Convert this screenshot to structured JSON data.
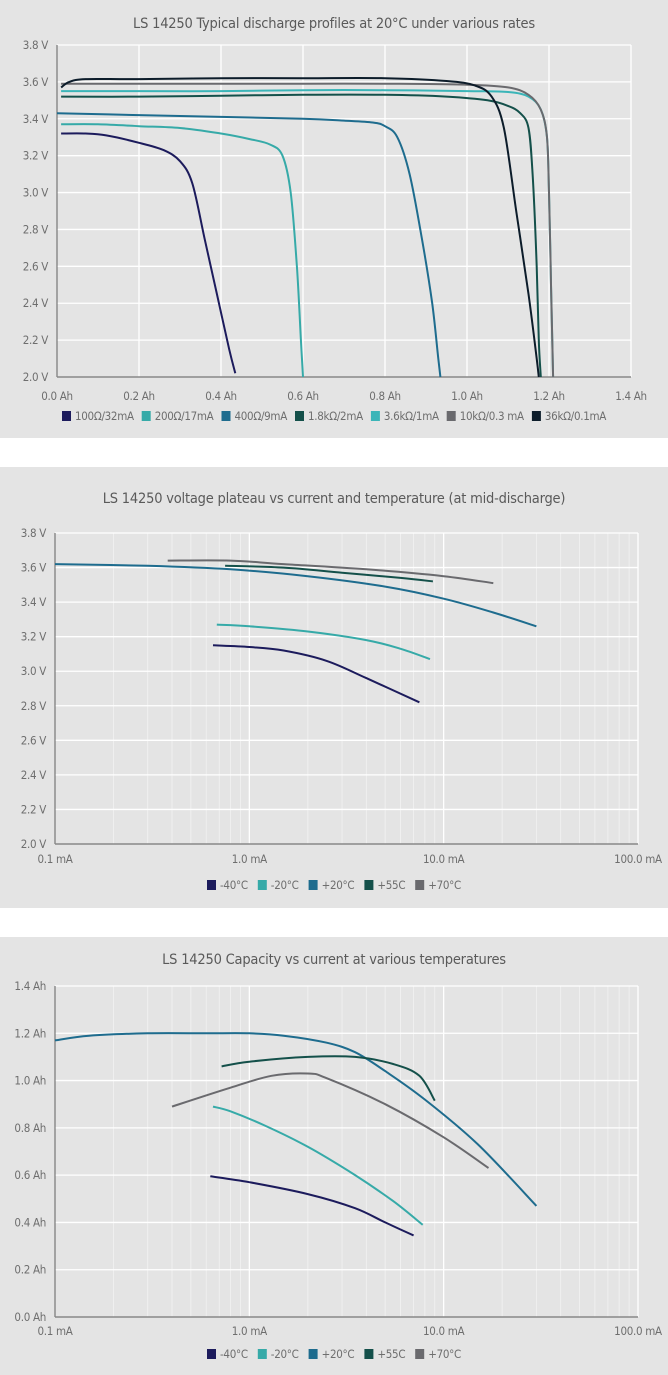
{
  "chart_data": [
    {
      "type": "line",
      "title": "LS 14250 Typical discharge profiles at 20°C under various rates",
      "xlabel": "",
      "ylabel": "",
      "x_scale": "linear",
      "xlim": [
        0,
        1.4
      ],
      "ylim": [
        2.0,
        3.8
      ],
      "x_ticks": [
        0,
        0.2,
        0.4,
        0.6,
        0.8,
        1.0,
        1.2,
        1.4
      ],
      "x_tick_labels": [
        "0.0 Ah",
        "0.2 Ah",
        "0.4 Ah",
        "0.6 Ah",
        "0.8 Ah",
        "1.0 Ah",
        "1.2 Ah",
        "1.4 Ah"
      ],
      "y_ticks": [
        2.0,
        2.2,
        2.4,
        2.6,
        2.8,
        3.0,
        3.2,
        3.4,
        3.6,
        3.8
      ],
      "y_tick_labels": [
        "2.0 V",
        "2.2 V",
        "2.4 V",
        "2.6 V",
        "2.8 V",
        "3.0 V",
        "3.2 V",
        "3.4 V",
        "3.6 V",
        "3.8 V"
      ],
      "grid": true,
      "legend_position": "bottom",
      "series": [
        {
          "name": "100Ω/32mA",
          "color": "#1c1b5c",
          "points": [
            [
              0.01,
              3.32
            ],
            [
              0.07,
              3.32
            ],
            [
              0.12,
              3.31
            ],
            [
              0.2,
              3.27
            ],
            [
              0.26,
              3.23
            ],
            [
              0.3,
              3.17
            ],
            [
              0.33,
              3.05
            ],
            [
              0.36,
              2.75
            ],
            [
              0.39,
              2.45
            ],
            [
              0.42,
              2.15
            ],
            [
              0.435,
              2.02
            ]
          ]
        },
        {
          "name": "200Ω/17mA",
          "color": "#36aaa8",
          "points": [
            [
              0.01,
              3.37
            ],
            [
              0.1,
              3.37
            ],
            [
              0.2,
              3.36
            ],
            [
              0.3,
              3.35
            ],
            [
              0.4,
              3.32
            ],
            [
              0.47,
              3.29
            ],
            [
              0.52,
              3.26
            ],
            [
              0.55,
              3.2
            ],
            [
              0.57,
              3.0
            ],
            [
              0.585,
              2.6
            ],
            [
              0.595,
              2.2
            ],
            [
              0.6,
              2.0
            ]
          ]
        },
        {
          "name": "400Ω/9mA",
          "color": "#1e6c8e",
          "points": [
            [
              0.0,
              3.43
            ],
            [
              0.2,
              3.42
            ],
            [
              0.4,
              3.41
            ],
            [
              0.6,
              3.4
            ],
            [
              0.7,
              3.39
            ],
            [
              0.77,
              3.38
            ],
            [
              0.8,
              3.36
            ],
            [
              0.83,
              3.3
            ],
            [
              0.86,
              3.1
            ],
            [
              0.89,
              2.75
            ],
            [
              0.915,
              2.4
            ],
            [
              0.93,
              2.1
            ],
            [
              0.935,
              2.0
            ]
          ]
        },
        {
          "name": "1.8kΩ/2mA",
          "color": "#14504a",
          "points": [
            [
              0.01,
              3.52
            ],
            [
              0.2,
              3.52
            ],
            [
              0.4,
              3.525
            ],
            [
              0.6,
              3.53
            ],
            [
              0.8,
              3.53
            ],
            [
              0.95,
              3.52
            ],
            [
              1.05,
              3.5
            ],
            [
              1.1,
              3.47
            ],
            [
              1.13,
              3.43
            ],
            [
              1.15,
              3.35
            ],
            [
              1.16,
              3.1
            ],
            [
              1.17,
              2.6
            ],
            [
              1.175,
              2.2
            ],
            [
              1.18,
              2.0
            ]
          ]
        },
        {
          "name": "3.6kΩ/1mA",
          "color": "#3bb5b8",
          "points": [
            [
              0.01,
              3.55
            ],
            [
              0.2,
              3.55
            ],
            [
              0.4,
              3.55
            ],
            [
              0.6,
              3.555
            ],
            [
              0.8,
              3.555
            ],
            [
              1.0,
              3.55
            ],
            [
              1.1,
              3.545
            ],
            [
              1.15,
              3.52
            ],
            [
              1.18,
              3.45
            ],
            [
              1.195,
              3.3
            ],
            [
              1.2,
              3.0
            ],
            [
              1.205,
              2.5
            ],
            [
              1.21,
              2.0
            ]
          ]
        },
        {
          "name": "10kΩ/0.3 mA",
          "color": "#6a6a6e",
          "points": [
            [
              0.01,
              3.59
            ],
            [
              0.2,
              3.59
            ],
            [
              0.4,
              3.59
            ],
            [
              0.6,
              3.59
            ],
            [
              0.8,
              3.59
            ],
            [
              1.0,
              3.585
            ],
            [
              1.1,
              3.57
            ],
            [
              1.15,
              3.53
            ],
            [
              1.18,
              3.45
            ],
            [
              1.195,
              3.3
            ],
            [
              1.2,
              3.0
            ],
            [
              1.205,
              2.5
            ],
            [
              1.21,
              2.0
            ]
          ]
        },
        {
          "name": "36kΩ/0.1mA",
          "color": "#0c1c2a",
          "points": [
            [
              0.01,
              3.57
            ],
            [
              0.03,
              3.6
            ],
            [
              0.07,
              3.615
            ],
            [
              0.2,
              3.615
            ],
            [
              0.4,
              3.62
            ],
            [
              0.6,
              3.62
            ],
            [
              0.8,
              3.62
            ],
            [
              0.95,
              3.605
            ],
            [
              1.02,
              3.58
            ],
            [
              1.06,
              3.52
            ],
            [
              1.09,
              3.35
            ],
            [
              1.12,
              2.9
            ],
            [
              1.15,
              2.45
            ],
            [
              1.17,
              2.1
            ],
            [
              1.175,
              2.0
            ]
          ]
        }
      ]
    },
    {
      "type": "line",
      "title": "LS 14250 voltage plateau vs current and temperature (at mid-discharge)",
      "xlabel": "",
      "ylabel": "",
      "x_scale": "log",
      "xlim": [
        0.1,
        100
      ],
      "ylim": [
        2.0,
        3.8
      ],
      "x_ticks": [
        0.1,
        1,
        10,
        100
      ],
      "x_tick_labels": [
        "0.1 mA",
        "1.0 mA",
        "10.0 mA",
        "100.0 mA"
      ],
      "y_ticks": [
        2.0,
        2.2,
        2.4,
        2.6,
        2.8,
        3.0,
        3.2,
        3.4,
        3.6,
        3.8
      ],
      "y_tick_labels": [
        "2.0 V",
        "2.2 V",
        "2.4 V",
        "2.6 V",
        "2.8 V",
        "3.0 V",
        "3.2 V",
        "3.4 V",
        "3.6 V",
        "3.8 V"
      ],
      "grid": true,
      "legend_position": "bottom",
      "series": [
        {
          "name": "-40°C",
          "color": "#1c1b5c",
          "points": [
            [
              0.65,
              3.15
            ],
            [
              1.0,
              3.14
            ],
            [
              1.5,
              3.12
            ],
            [
              2.5,
              3.06
            ],
            [
              4.0,
              2.96
            ],
            [
              7.5,
              2.82
            ]
          ]
        },
        {
          "name": "-20°C",
          "color": "#36aaa8",
          "points": [
            [
              0.68,
              3.27
            ],
            [
              1.0,
              3.26
            ],
            [
              2.0,
              3.23
            ],
            [
              4.0,
              3.18
            ],
            [
              6.0,
              3.13
            ],
            [
              8.5,
              3.07
            ]
          ]
        },
        {
          "name": "+20°C",
          "color": "#1e6c8e",
          "points": [
            [
              0.1,
              3.62
            ],
            [
              0.3,
              3.61
            ],
            [
              0.8,
              3.59
            ],
            [
              2.0,
              3.55
            ],
            [
              5.0,
              3.49
            ],
            [
              10.0,
              3.42
            ],
            [
              18.0,
              3.34
            ],
            [
              30.0,
              3.26
            ]
          ]
        },
        {
          "name": "+55C",
          "color": "#14504a",
          "points": [
            [
              0.75,
              3.61
            ],
            [
              1.5,
              3.6
            ],
            [
              3.0,
              3.57
            ],
            [
              6.0,
              3.54
            ],
            [
              8.8,
              3.52
            ]
          ]
        },
        {
          "name": "+70°C",
          "color": "#6a6a6e",
          "points": [
            [
              0.38,
              3.64
            ],
            [
              0.8,
              3.64
            ],
            [
              1.5,
              3.62
            ],
            [
              4.0,
              3.59
            ],
            [
              10.0,
              3.55
            ],
            [
              18.0,
              3.51
            ]
          ]
        }
      ]
    },
    {
      "type": "line",
      "title": "LS 14250 Capacity vs current at various temperatures",
      "xlabel": "",
      "ylabel": "",
      "x_scale": "log",
      "xlim": [
        0.1,
        100
      ],
      "ylim": [
        0.0,
        1.4
      ],
      "x_ticks": [
        0.1,
        1,
        10,
        100
      ],
      "x_tick_labels": [
        "0.1 mA",
        "1.0 mA",
        "10.0 mA",
        "100.0 mA"
      ],
      "y_ticks": [
        0.0,
        0.2,
        0.4,
        0.6,
        0.8,
        1.0,
        1.2,
        1.4
      ],
      "y_tick_labels": [
        "0.0 Ah",
        "0.2 Ah",
        "0.4 Ah",
        "0.6 Ah",
        "0.8 Ah",
        "1.0 Ah",
        "1.2 Ah",
        "1.4 Ah"
      ],
      "grid": true,
      "legend_position": "bottom",
      "series": [
        {
          "name": "-40°C",
          "color": "#1c1b5c",
          "points": [
            [
              0.63,
              0.595
            ],
            [
              1.0,
              0.57
            ],
            [
              2.0,
              0.52
            ],
            [
              3.5,
              0.46
            ],
            [
              5.0,
              0.4
            ],
            [
              7.0,
              0.345
            ]
          ]
        },
        {
          "name": "-20°C",
          "color": "#36aaa8",
          "points": [
            [
              0.65,
              0.89
            ],
            [
              0.8,
              0.87
            ],
            [
              1.2,
              0.81
            ],
            [
              2.0,
              0.72
            ],
            [
              3.5,
              0.6
            ],
            [
              5.5,
              0.49
            ],
            [
              7.8,
              0.39
            ]
          ]
        },
        {
          "name": "+20°C",
          "color": "#1e6c8e",
          "points": [
            [
              0.1,
              1.17
            ],
            [
              0.15,
              1.19
            ],
            [
              0.3,
              1.2
            ],
            [
              0.6,
              1.2
            ],
            [
              1.0,
              1.2
            ],
            [
              1.5,
              1.19
            ],
            [
              2.5,
              1.16
            ],
            [
              3.5,
              1.12
            ],
            [
              5.0,
              1.04
            ],
            [
              8.0,
              0.92
            ],
            [
              15.0,
              0.73
            ],
            [
              30.0,
              0.47
            ]
          ]
        },
        {
          "name": "+55C",
          "color": "#14504a",
          "points": [
            [
              0.72,
              1.06
            ],
            [
              1.0,
              1.08
            ],
            [
              2.0,
              1.1
            ],
            [
              3.5,
              1.1
            ],
            [
              5.5,
              1.07
            ],
            [
              7.5,
              1.02
            ],
            [
              9.0,
              0.915
            ]
          ]
        },
        {
          "name": "+70°C",
          "color": "#6a6a6e",
          "points": [
            [
              0.4,
              0.89
            ],
            [
              0.8,
              0.97
            ],
            [
              1.3,
              1.02
            ],
            [
              2.0,
              1.03
            ],
            [
              2.5,
              1.01
            ],
            [
              5.0,
              0.9
            ],
            [
              10.0,
              0.76
            ],
            [
              17.0,
              0.63
            ]
          ]
        }
      ]
    }
  ]
}
